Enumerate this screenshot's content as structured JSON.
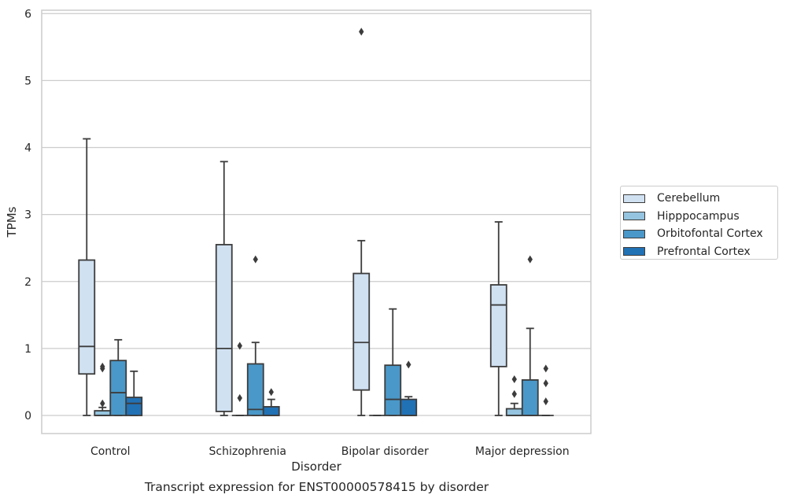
{
  "chart_data": {
    "type": "box",
    "caption": "Transcript expression for ENST00000578415 by disorder",
    "xlabel": "Disorder",
    "ylabel": "TPMs",
    "ylim": [
      -0.27,
      6.05
    ],
    "yticks": [
      0,
      1,
      2,
      3,
      4,
      5,
      6
    ],
    "categories": [
      "Control",
      "Schizophrenia",
      "Bipolar disorder",
      "Major depression"
    ],
    "grid": true,
    "legend_position": "right",
    "series": [
      {
        "name": "Cerebellum",
        "color": "#d0e1f2",
        "boxes": [
          {
            "whislo": 0.0,
            "q1": 0.62,
            "median": 1.03,
            "q3": 2.32,
            "whishi": 4.13,
            "fliers": []
          },
          {
            "whislo": 0.0,
            "q1": 0.06,
            "median": 1.0,
            "q3": 2.55,
            "whishi": 3.79,
            "fliers": []
          },
          {
            "whislo": 0.0,
            "q1": 0.38,
            "median": 1.09,
            "q3": 2.12,
            "whishi": 2.61,
            "fliers": [
              5.73
            ]
          },
          {
            "whislo": 0.0,
            "q1": 0.73,
            "median": 1.65,
            "q3": 1.95,
            "whishi": 2.89,
            "fliers": []
          }
        ]
      },
      {
        "name": "Hipppocampus",
        "color": "#94c4df",
        "boxes": [
          {
            "whislo": 0.0,
            "q1": 0.0,
            "median": 0.0,
            "q3": 0.07,
            "whishi": 0.12,
            "fliers": [
              0.18,
              0.7,
              0.73
            ]
          },
          {
            "whislo": 0.0,
            "q1": 0.0,
            "median": 0.0,
            "q3": 0.0,
            "whishi": 0.0,
            "fliers": [
              0.26,
              1.04
            ]
          },
          {
            "whislo": 0.0,
            "q1": 0.0,
            "median": 0.0,
            "q3": 0.0,
            "whishi": 0.0,
            "fliers": []
          },
          {
            "whislo": 0.0,
            "q1": 0.0,
            "median": 0.0,
            "q3": 0.1,
            "whishi": 0.18,
            "fliers": [
              0.32,
              0.54
            ]
          }
        ]
      },
      {
        "name": "Orbitofontal Cortex",
        "color": "#4a98c9",
        "boxes": [
          {
            "whislo": 0.0,
            "q1": 0.0,
            "median": 0.34,
            "q3": 0.82,
            "whishi": 1.13,
            "fliers": []
          },
          {
            "whislo": 0.0,
            "q1": 0.0,
            "median": 0.09,
            "q3": 0.77,
            "whishi": 1.09,
            "fliers": [
              2.33
            ]
          },
          {
            "whislo": 0.0,
            "q1": 0.0,
            "median": 0.24,
            "q3": 0.75,
            "whishi": 1.59,
            "fliers": []
          },
          {
            "whislo": 0.0,
            "q1": 0.0,
            "median": 0.0,
            "q3": 0.53,
            "whishi": 1.3,
            "fliers": [
              2.33
            ]
          }
        ]
      },
      {
        "name": "Prefrontal Cortex",
        "color": "#2171b5",
        "boxes": [
          {
            "whislo": 0.0,
            "q1": 0.0,
            "median": 0.18,
            "q3": 0.27,
            "whishi": 0.66,
            "fliers": []
          },
          {
            "whislo": 0.0,
            "q1": 0.0,
            "median": 0.0,
            "q3": 0.13,
            "whishi": 0.24,
            "fliers": [
              0.35
            ]
          },
          {
            "whislo": 0.0,
            "q1": 0.0,
            "median": 0.0,
            "q3": 0.24,
            "whishi": 0.28,
            "fliers": [
              0.76
            ]
          },
          {
            "whislo": 0.0,
            "q1": 0.0,
            "median": 0.0,
            "q3": 0.0,
            "whishi": 0.0,
            "fliers": [
              0.21,
              0.48,
              0.7
            ]
          }
        ]
      }
    ]
  }
}
